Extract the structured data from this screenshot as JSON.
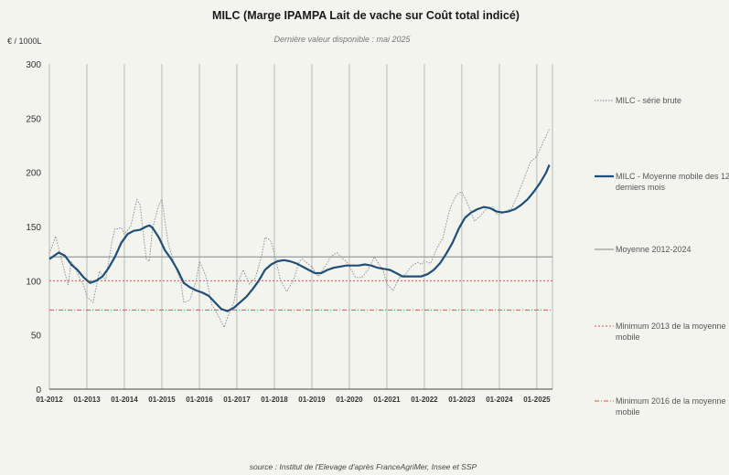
{
  "chart_data": {
    "type": "line",
    "title": "MILC (Marge IPAMPA Lait de vache sur Coût total indicé)",
    "subtitle": "Dernière valeur disponible : mai 2025",
    "ylabel": "€ / 1000L",
    "source": "source : Institut de l'Elevage d'après FranceAgriMer, Insee et SSP",
    "ylim": [
      0,
      300
    ],
    "yticks": [
      "0",
      "50",
      "100",
      "150",
      "200",
      "250",
      "300"
    ],
    "xtick_labels": [
      "01-2012",
      "01-2013",
      "01-2014",
      "01-2015",
      "01-2016",
      "01-2017",
      "01-2018",
      "01-2019",
      "01-2020",
      "01-2021",
      "01-2022",
      "01-2023",
      "01-2024",
      "01-2025"
    ],
    "x_start": "01-2012",
    "x_end": "05-2025",
    "grid": "vertical yearly",
    "legend_position": "right",
    "colors": {
      "raw": "#7a8a9a",
      "moving_avg": "#1f4e79",
      "mean": "#999999",
      "min2013": "#d9534f",
      "min2016": "#d9534f"
    },
    "series": [
      {
        "name": "MILC - série brute",
        "style": "dotted",
        "points": [
          [
            "01-2012",
            125
          ],
          [
            "03-2012",
            141
          ],
          [
            "05-2012",
            118
          ],
          [
            "07-2012",
            96
          ],
          [
            "08-2012",
            118
          ],
          [
            "09-2012",
            113
          ],
          [
            "11-2012",
            100
          ],
          [
            "12-2012",
            96
          ],
          [
            "01-2013",
            85
          ],
          [
            "03-2013",
            80
          ],
          [
            "05-2013",
            109
          ],
          [
            "07-2013",
            100
          ],
          [
            "09-2013",
            136
          ],
          [
            "10-2013",
            148
          ],
          [
            "11-2013",
            148
          ],
          [
            "12-2013",
            149
          ],
          [
            "01-2014",
            143
          ],
          [
            "03-2014",
            150
          ],
          [
            "05-2014",
            175
          ],
          [
            "06-2014",
            170
          ],
          [
            "08-2014",
            120
          ],
          [
            "09-2014",
            118
          ],
          [
            "10-2014",
            148
          ],
          [
            "12-2014",
            170
          ],
          [
            "01-2015",
            175
          ],
          [
            "03-2015",
            135
          ],
          [
            "05-2015",
            115
          ],
          [
            "07-2015",
            100
          ],
          [
            "08-2015",
            80
          ],
          [
            "10-2015",
            82
          ],
          [
            "12-2015",
            101
          ],
          [
            "01-2016",
            118
          ],
          [
            "03-2016",
            105
          ],
          [
            "05-2016",
            78
          ],
          [
            "07-2016",
            68
          ],
          [
            "08-2016",
            62
          ],
          [
            "09-2016",
            57
          ],
          [
            "10-2016",
            66
          ],
          [
            "12-2016",
            80
          ],
          [
            "01-2017",
            96
          ],
          [
            "03-2017",
            110
          ],
          [
            "05-2017",
            97
          ],
          [
            "07-2017",
            103
          ],
          [
            "09-2017",
            124
          ],
          [
            "10-2017",
            140
          ],
          [
            "11-2017",
            139
          ],
          [
            "12-2017",
            136
          ],
          [
            "01-2018",
            125
          ],
          [
            "03-2018",
            100
          ],
          [
            "05-2018",
            90
          ],
          [
            "07-2018",
            100
          ],
          [
            "09-2018",
            118
          ],
          [
            "10-2018",
            120
          ],
          [
            "12-2018",
            115
          ],
          [
            "01-2019",
            113
          ],
          [
            "03-2019",
            104
          ],
          [
            "05-2019",
            112
          ],
          [
            "07-2019",
            122
          ],
          [
            "09-2019",
            126
          ],
          [
            "11-2019",
            120
          ],
          [
            "12-2019",
            118
          ],
          [
            "01-2020",
            113
          ],
          [
            "03-2020",
            103
          ],
          [
            "05-2020",
            103
          ],
          [
            "07-2020",
            110
          ],
          [
            "09-2020",
            122
          ],
          [
            "11-2020",
            113
          ],
          [
            "12-2020",
            108
          ],
          [
            "01-2021",
            97
          ],
          [
            "03-2021",
            91
          ],
          [
            "05-2021",
            103
          ],
          [
            "07-2021",
            106
          ],
          [
            "09-2021",
            114
          ],
          [
            "11-2021",
            117
          ],
          [
            "12-2021",
            115
          ],
          [
            "01-2022",
            118
          ],
          [
            "03-2022",
            116
          ],
          [
            "05-2022",
            130
          ],
          [
            "07-2022",
            140
          ],
          [
            "09-2022",
            165
          ],
          [
            "11-2022",
            178
          ],
          [
            "12-2022",
            181
          ],
          [
            "01-2023",
            182
          ],
          [
            "03-2023",
            170
          ],
          [
            "05-2023",
            155
          ],
          [
            "07-2023",
            160
          ],
          [
            "09-2023",
            167
          ],
          [
            "11-2023",
            168
          ],
          [
            "12-2023",
            162
          ],
          [
            "01-2024",
            161
          ],
          [
            "03-2024",
            164
          ],
          [
            "05-2024",
            167
          ],
          [
            "07-2024",
            180
          ],
          [
            "09-2024",
            195
          ],
          [
            "11-2024",
            210
          ],
          [
            "12-2024",
            212
          ],
          [
            "01-2025",
            215
          ],
          [
            "03-2025",
            228
          ],
          [
            "05-2025",
            240
          ]
        ]
      },
      {
        "name": "MILC - Moyenne mobile des 12 derniers mois",
        "style": "solid",
        "points": [
          [
            "01-2012",
            120
          ],
          [
            "04-2012",
            126
          ],
          [
            "06-2012",
            123
          ],
          [
            "08-2012",
            115
          ],
          [
            "10-2012",
            110
          ],
          [
            "12-2012",
            103
          ],
          [
            "02-2013",
            98
          ],
          [
            "04-2013",
            100
          ],
          [
            "06-2013",
            104
          ],
          [
            "08-2013",
            112
          ],
          [
            "10-2013",
            122
          ],
          [
            "12-2013",
            135
          ],
          [
            "02-2014",
            143
          ],
          [
            "04-2014",
            146
          ],
          [
            "06-2014",
            147
          ],
          [
            "08-2014",
            150
          ],
          [
            "09-2014",
            151
          ],
          [
            "10-2014",
            149
          ],
          [
            "12-2014",
            140
          ],
          [
            "02-2015",
            128
          ],
          [
            "04-2015",
            120
          ],
          [
            "06-2015",
            110
          ],
          [
            "08-2015",
            98
          ],
          [
            "10-2015",
            94
          ],
          [
            "12-2015",
            91
          ],
          [
            "02-2016",
            89
          ],
          [
            "04-2016",
            86
          ],
          [
            "06-2016",
            80
          ],
          [
            "08-2016",
            74
          ],
          [
            "10-2016",
            72
          ],
          [
            "12-2016",
            75
          ],
          [
            "02-2017",
            80
          ],
          [
            "04-2017",
            85
          ],
          [
            "06-2017",
            92
          ],
          [
            "08-2017",
            100
          ],
          [
            "10-2017",
            110
          ],
          [
            "12-2017",
            115
          ],
          [
            "02-2018",
            118
          ],
          [
            "04-2018",
            119
          ],
          [
            "06-2018",
            118
          ],
          [
            "08-2018",
            116
          ],
          [
            "10-2018",
            113
          ],
          [
            "12-2018",
            110
          ],
          [
            "02-2019",
            107
          ],
          [
            "04-2019",
            107
          ],
          [
            "06-2019",
            110
          ],
          [
            "08-2019",
            112
          ],
          [
            "10-2019",
            113
          ],
          [
            "12-2019",
            114
          ],
          [
            "02-2020",
            114
          ],
          [
            "04-2020",
            114
          ],
          [
            "06-2020",
            115
          ],
          [
            "08-2020",
            114
          ],
          [
            "10-2020",
            112
          ],
          [
            "12-2020",
            111
          ],
          [
            "02-2021",
            110
          ],
          [
            "04-2021",
            107
          ],
          [
            "06-2021",
            104
          ],
          [
            "08-2021",
            104
          ],
          [
            "10-2021",
            104
          ],
          [
            "12-2021",
            104
          ],
          [
            "02-2022",
            106
          ],
          [
            "04-2022",
            110
          ],
          [
            "06-2022",
            116
          ],
          [
            "08-2022",
            125
          ],
          [
            "10-2022",
            135
          ],
          [
            "12-2022",
            148
          ],
          [
            "02-2023",
            158
          ],
          [
            "04-2023",
            163
          ],
          [
            "06-2023",
            166
          ],
          [
            "08-2023",
            168
          ],
          [
            "10-2023",
            167
          ],
          [
            "12-2023",
            164
          ],
          [
            "02-2024",
            163
          ],
          [
            "04-2024",
            164
          ],
          [
            "06-2024",
            166
          ],
          [
            "08-2024",
            170
          ],
          [
            "10-2024",
            175
          ],
          [
            "12-2024",
            182
          ],
          [
            "02-2025",
            190
          ],
          [
            "04-2025",
            200
          ],
          [
            "05-2025",
            207
          ]
        ]
      }
    ],
    "reference_lines": [
      {
        "name": "Moyenne 2012-2024",
        "value": 122,
        "style": "solid"
      },
      {
        "name": "Minimum 2013  de la moyenne mobile",
        "value": 100,
        "style": "dashed"
      },
      {
        "name": "Minimum 2016 de la moyenne mobile",
        "value": 73,
        "style": "dashdot"
      }
    ]
  }
}
